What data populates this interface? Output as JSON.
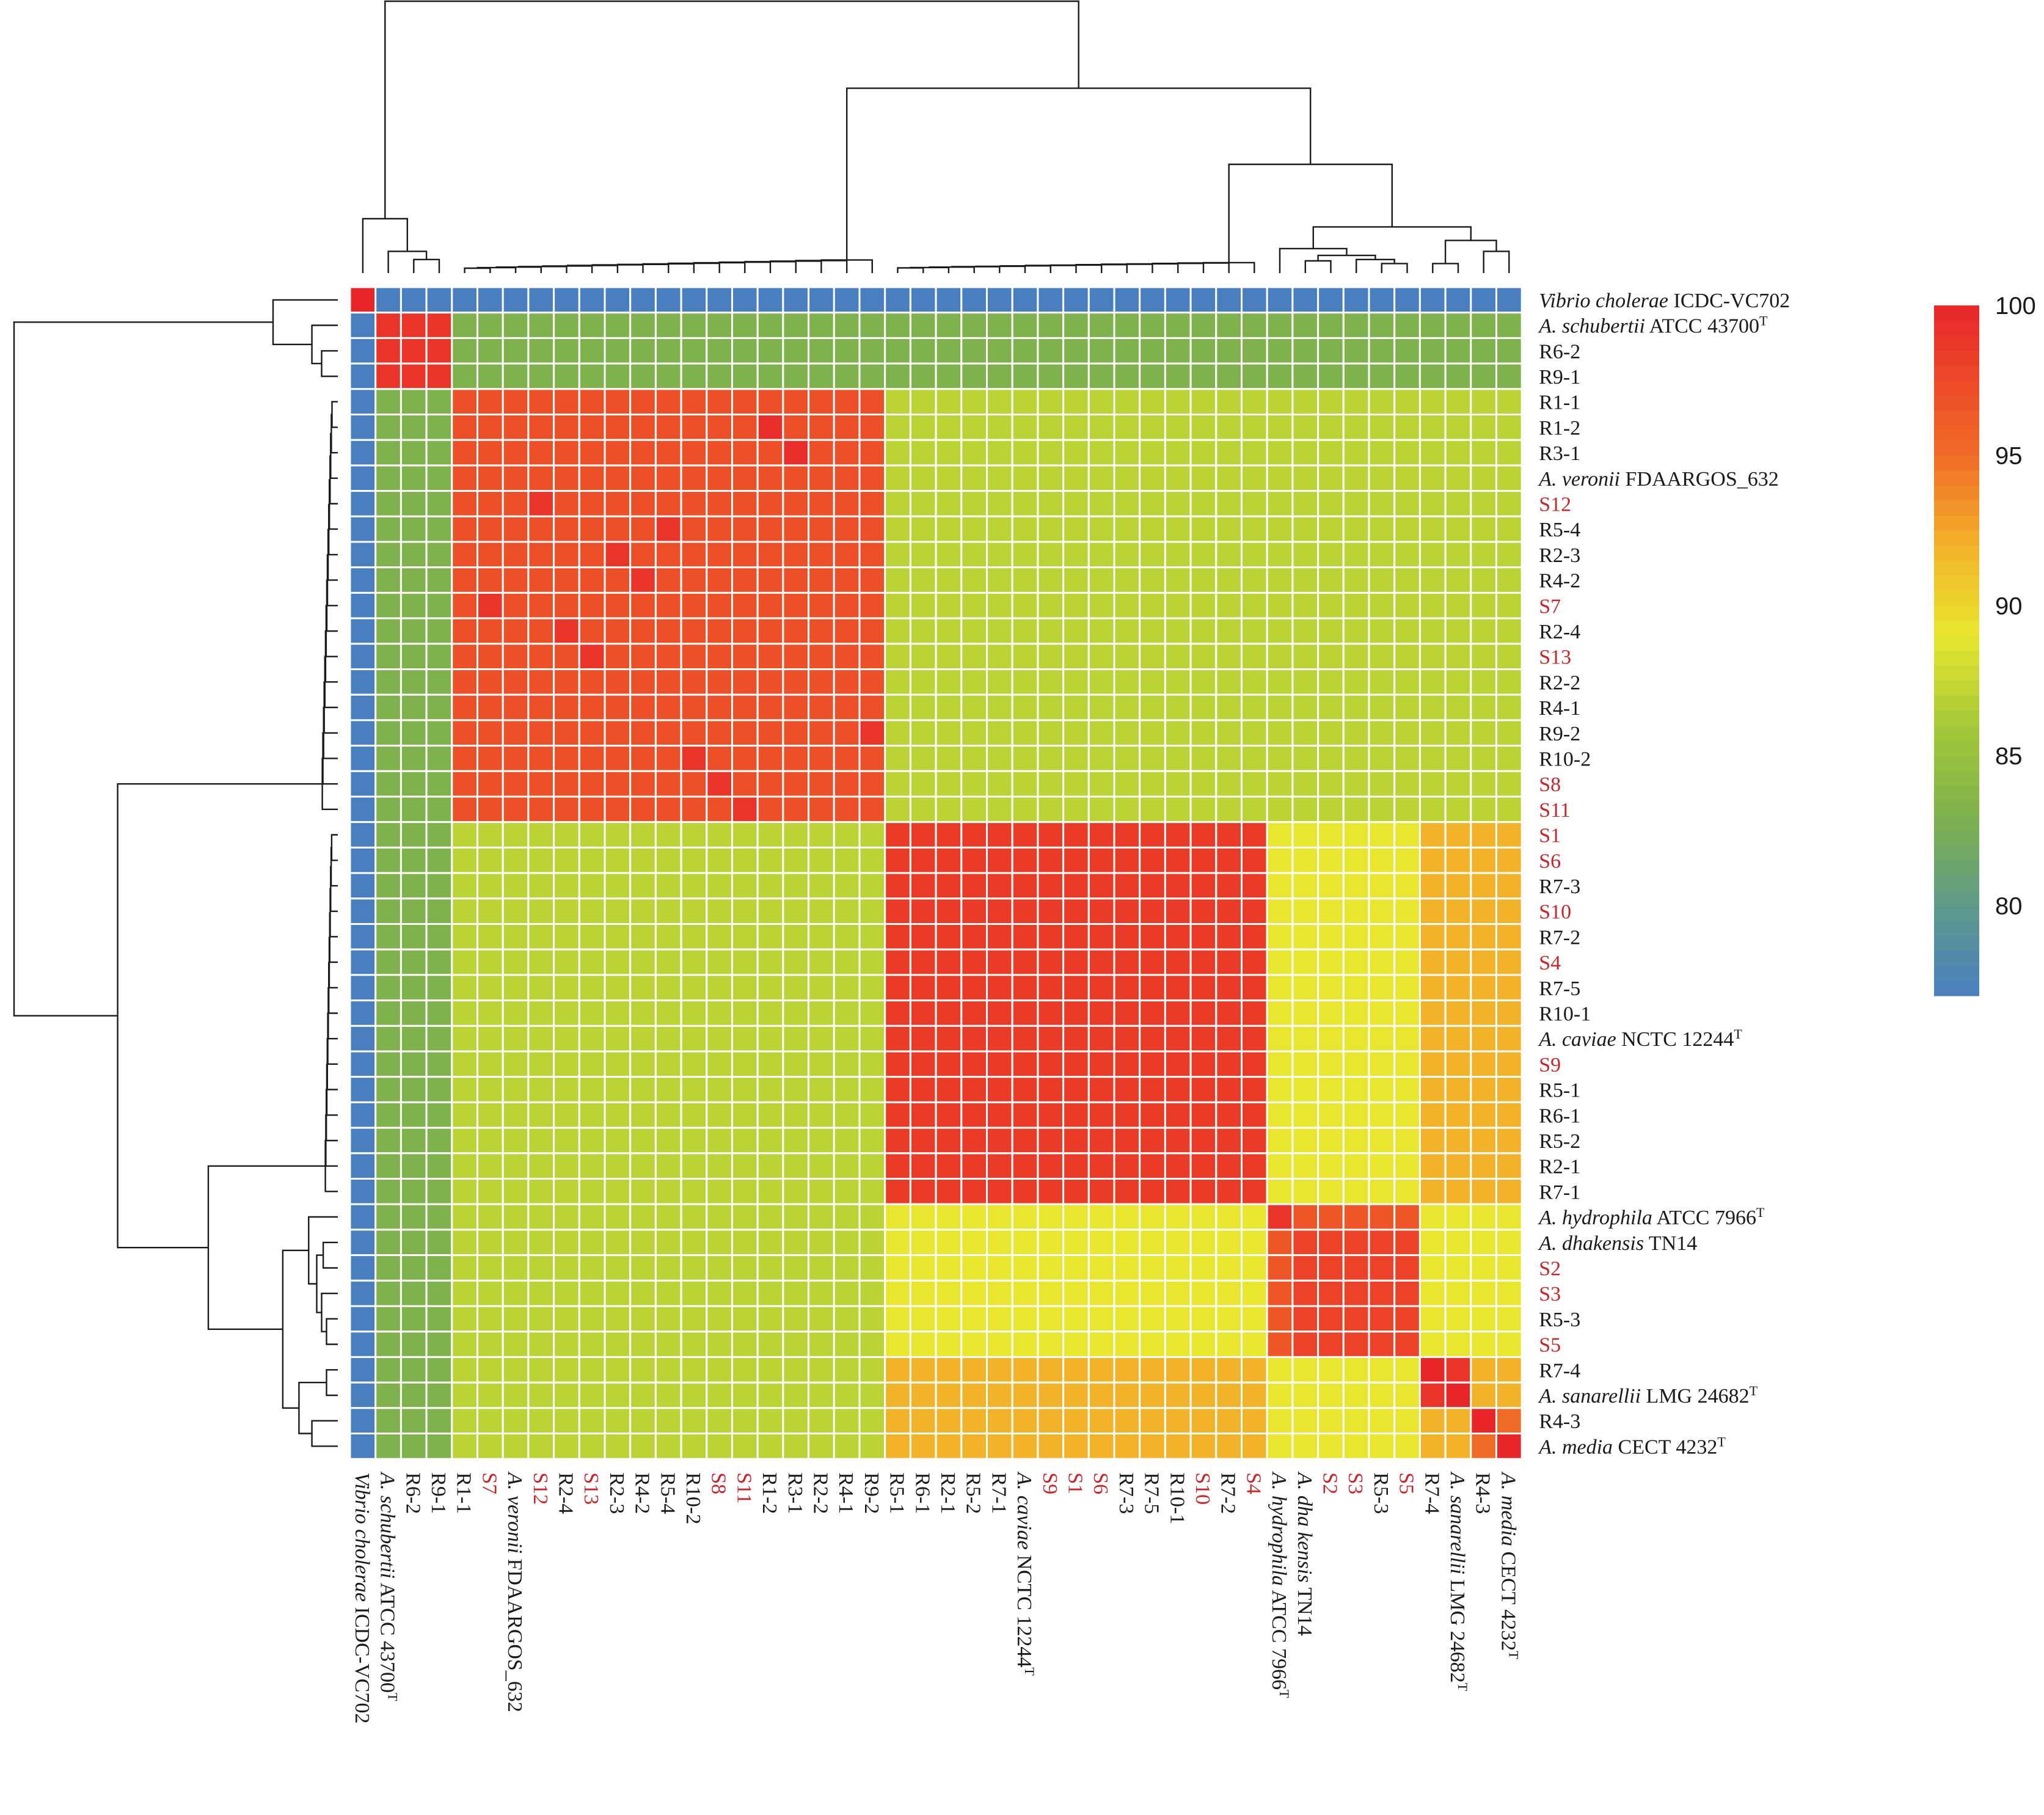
{
  "chart_data": {
    "type": "heatmap",
    "title": "",
    "xlabel": "",
    "ylabel": "",
    "row_labels": [
      {
        "parts": [
          {
            "t": "Vibrio cholerae",
            "i": true
          },
          {
            "t": " ICDC-VC702"
          }
        ],
        "red": false
      },
      {
        "parts": [
          {
            "t": "A. schubertii",
            "i": true
          },
          {
            "t": " ATCC 43700"
          },
          {
            "t": "T",
            "sup": true
          }
        ],
        "red": false
      },
      {
        "parts": [
          {
            "t": "R6-2"
          }
        ],
        "red": false
      },
      {
        "parts": [
          {
            "t": "R9-1"
          }
        ],
        "red": false
      },
      {
        "parts": [
          {
            "t": "R1-1"
          }
        ],
        "red": false
      },
      {
        "parts": [
          {
            "t": "R1-2"
          }
        ],
        "red": false
      },
      {
        "parts": [
          {
            "t": "R3-1"
          }
        ],
        "red": false
      },
      {
        "parts": [
          {
            "t": "A. veronii",
            "i": true
          },
          {
            "t": " FDAARGOS_632"
          }
        ],
        "red": false
      },
      {
        "parts": [
          {
            "t": "S12"
          }
        ],
        "red": true
      },
      {
        "parts": [
          {
            "t": "R5-4"
          }
        ],
        "red": false
      },
      {
        "parts": [
          {
            "t": "R2-3"
          }
        ],
        "red": false
      },
      {
        "parts": [
          {
            "t": "R4-2"
          }
        ],
        "red": false
      },
      {
        "parts": [
          {
            "t": "S7"
          }
        ],
        "red": true
      },
      {
        "parts": [
          {
            "t": "R2-4"
          }
        ],
        "red": false
      },
      {
        "parts": [
          {
            "t": "S13"
          }
        ],
        "red": true
      },
      {
        "parts": [
          {
            "t": "R2-2"
          }
        ],
        "red": false
      },
      {
        "parts": [
          {
            "t": "R4-1"
          }
        ],
        "red": false
      },
      {
        "parts": [
          {
            "t": "R9-2"
          }
        ],
        "red": false
      },
      {
        "parts": [
          {
            "t": "R10-2"
          }
        ],
        "red": false
      },
      {
        "parts": [
          {
            "t": "S8"
          }
        ],
        "red": true
      },
      {
        "parts": [
          {
            "t": "S11"
          }
        ],
        "red": true
      },
      {
        "parts": [
          {
            "t": "S1"
          }
        ],
        "red": true
      },
      {
        "parts": [
          {
            "t": "S6"
          }
        ],
        "red": true
      },
      {
        "parts": [
          {
            "t": "R7-3"
          }
        ],
        "red": false
      },
      {
        "parts": [
          {
            "t": "S10"
          }
        ],
        "red": true
      },
      {
        "parts": [
          {
            "t": "R7-2"
          }
        ],
        "red": false
      },
      {
        "parts": [
          {
            "t": "S4"
          }
        ],
        "red": true
      },
      {
        "parts": [
          {
            "t": "R7-5"
          }
        ],
        "red": false
      },
      {
        "parts": [
          {
            "t": "R10-1"
          }
        ],
        "red": false
      },
      {
        "parts": [
          {
            "t": "A. caviae",
            "i": true
          },
          {
            "t": " NCTC 12244"
          },
          {
            "t": "T",
            "sup": true
          }
        ],
        "red": false
      },
      {
        "parts": [
          {
            "t": "S9"
          }
        ],
        "red": true
      },
      {
        "parts": [
          {
            "t": "R5-1"
          }
        ],
        "red": false
      },
      {
        "parts": [
          {
            "t": "R6-1"
          }
        ],
        "red": false
      },
      {
        "parts": [
          {
            "t": "R5-2"
          }
        ],
        "red": false
      },
      {
        "parts": [
          {
            "t": "R2-1"
          }
        ],
        "red": false
      },
      {
        "parts": [
          {
            "t": "R7-1"
          }
        ],
        "red": false
      },
      {
        "parts": [
          {
            "t": "A. hydrophila",
            "i": true
          },
          {
            "t": " ATCC 7966"
          },
          {
            "t": "T",
            "sup": true
          }
        ],
        "red": false
      },
      {
        "parts": [
          {
            "t": "A. dhakensis",
            "i": true
          },
          {
            "t": " TN14"
          }
        ],
        "red": false
      },
      {
        "parts": [
          {
            "t": "S2"
          }
        ],
        "red": true
      },
      {
        "parts": [
          {
            "t": "S3"
          }
        ],
        "red": true
      },
      {
        "parts": [
          {
            "t": "R5-3"
          }
        ],
        "red": false
      },
      {
        "parts": [
          {
            "t": "S5"
          }
        ],
        "red": true
      },
      {
        "parts": [
          {
            "t": "R7-4"
          }
        ],
        "red": false
      },
      {
        "parts": [
          {
            "t": "A. sanarellii",
            "i": true
          },
          {
            "t": " LMG 24682"
          },
          {
            "t": "T",
            "sup": true
          }
        ],
        "red": false
      },
      {
        "parts": [
          {
            "t": "R4-3"
          }
        ],
        "red": false
      },
      {
        "parts": [
          {
            "t": "A. media",
            "i": true
          },
          {
            "t": " CECT 4232"
          },
          {
            "t": "T",
            "sup": true
          }
        ],
        "red": false
      }
    ],
    "col_labels": [
      {
        "parts": [
          {
            "t": "Vibrio cholerae",
            "i": true
          },
          {
            "t": " ICDC-VC702"
          }
        ],
        "red": false
      },
      {
        "parts": [
          {
            "t": "A. schubertii",
            "i": true
          },
          {
            "t": " ATCC 43700"
          },
          {
            "t": "T",
            "sup": true
          }
        ],
        "red": false
      },
      {
        "parts": [
          {
            "t": "R6-2"
          }
        ],
        "red": false
      },
      {
        "parts": [
          {
            "t": "R9-1"
          }
        ],
        "red": false
      },
      {
        "parts": [
          {
            "t": "R1-1"
          }
        ],
        "red": false
      },
      {
        "parts": [
          {
            "t": "S7"
          }
        ],
        "red": true
      },
      {
        "parts": [
          {
            "t": "A. veronii",
            "i": true
          },
          {
            "t": " FDAARGOS_632"
          }
        ],
        "red": false
      },
      {
        "parts": [
          {
            "t": "S12"
          }
        ],
        "red": true
      },
      {
        "parts": [
          {
            "t": "R2-4"
          }
        ],
        "red": false
      },
      {
        "parts": [
          {
            "t": "S13"
          }
        ],
        "red": true
      },
      {
        "parts": [
          {
            "t": "R2-3"
          }
        ],
        "red": false
      },
      {
        "parts": [
          {
            "t": "R4-2"
          }
        ],
        "red": false
      },
      {
        "parts": [
          {
            "t": "R5-4"
          }
        ],
        "red": false
      },
      {
        "parts": [
          {
            "t": "R10-2"
          }
        ],
        "red": false
      },
      {
        "parts": [
          {
            "t": "S8"
          }
        ],
        "red": true
      },
      {
        "parts": [
          {
            "t": "S11"
          }
        ],
        "red": true
      },
      {
        "parts": [
          {
            "t": "R1-2"
          }
        ],
        "red": false
      },
      {
        "parts": [
          {
            "t": "R3-1"
          }
        ],
        "red": false
      },
      {
        "parts": [
          {
            "t": "R2-2"
          }
        ],
        "red": false
      },
      {
        "parts": [
          {
            "t": "R4-1"
          }
        ],
        "red": false
      },
      {
        "parts": [
          {
            "t": "R9-2"
          }
        ],
        "red": false
      },
      {
        "parts": [
          {
            "t": "R5-1"
          }
        ],
        "red": false
      },
      {
        "parts": [
          {
            "t": "R6-1"
          }
        ],
        "red": false
      },
      {
        "parts": [
          {
            "t": "R2-1"
          }
        ],
        "red": false
      },
      {
        "parts": [
          {
            "t": "R5-2"
          }
        ],
        "red": false
      },
      {
        "parts": [
          {
            "t": "R7-1"
          }
        ],
        "red": false
      },
      {
        "parts": [
          {
            "t": "A. caviae",
            "i": true
          },
          {
            "t": " NCTC 12244"
          },
          {
            "t": "T",
            "sup": true
          }
        ],
        "red": false
      },
      {
        "parts": [
          {
            "t": "S9"
          }
        ],
        "red": true
      },
      {
        "parts": [
          {
            "t": "S1"
          }
        ],
        "red": true
      },
      {
        "parts": [
          {
            "t": "S6"
          }
        ],
        "red": true
      },
      {
        "parts": [
          {
            "t": "R7-3"
          }
        ],
        "red": false
      },
      {
        "parts": [
          {
            "t": "R7-5"
          }
        ],
        "red": false
      },
      {
        "parts": [
          {
            "t": "R10-1"
          }
        ],
        "red": false
      },
      {
        "parts": [
          {
            "t": "S10"
          }
        ],
        "red": true
      },
      {
        "parts": [
          {
            "t": "R7-2"
          }
        ],
        "red": false
      },
      {
        "parts": [
          {
            "t": "S4"
          }
        ],
        "red": true
      },
      {
        "parts": [
          {
            "t": "A. hydrophila",
            "i": true
          },
          {
            "t": " ATCC 7966"
          },
          {
            "t": "T",
            "sup": true
          }
        ],
        "red": false
      },
      {
        "parts": [
          {
            "t": "A. dha kensis",
            "i": true
          },
          {
            "t": " TN14"
          }
        ],
        "red": false
      },
      {
        "parts": [
          {
            "t": "S2"
          }
        ],
        "red": true
      },
      {
        "parts": [
          {
            "t": "S3"
          }
        ],
        "red": true
      },
      {
        "parts": [
          {
            "t": "R5-3"
          }
        ],
        "red": false
      },
      {
        "parts": [
          {
            "t": "S5"
          }
        ],
        "red": true
      },
      {
        "parts": [
          {
            "t": "R7-4"
          }
        ],
        "red": false
      },
      {
        "parts": [
          {
            "t": "A. sanarellii",
            "i": true
          },
          {
            "t": " LMG 24682"
          },
          {
            "t": "T",
            "sup": true
          }
        ],
        "red": false
      },
      {
        "parts": [
          {
            "t": "R4-3"
          }
        ],
        "red": false
      },
      {
        "parts": [
          {
            "t": "A. media",
            "i": true
          },
          {
            "t": " CECT 4232"
          },
          {
            "t": "T",
            "sup": true
          }
        ],
        "red": false
      }
    ],
    "row_groups": [
      1,
      2,
      2,
      2,
      3,
      3,
      3,
      3,
      3,
      3,
      3,
      3,
      3,
      3,
      3,
      3,
      3,
      3,
      3,
      3,
      3,
      4,
      4,
      4,
      4,
      4,
      4,
      4,
      4,
      4,
      4,
      4,
      4,
      4,
      4,
      4,
      5,
      5,
      5,
      5,
      5,
      5,
      6,
      6,
      7,
      8
    ],
    "col_groups": [
      1,
      2,
      2,
      2,
      3,
      3,
      3,
      3,
      3,
      3,
      3,
      3,
      3,
      3,
      3,
      3,
      3,
      3,
      3,
      3,
      3,
      4,
      4,
      4,
      4,
      4,
      4,
      4,
      4,
      4,
      4,
      4,
      4,
      4,
      4,
      4,
      5,
      5,
      5,
      5,
      5,
      5,
      6,
      6,
      7,
      8
    ],
    "group_identity": [
      [
        100,
        77,
        77,
        77,
        77,
        77,
        77,
        77
      ],
      [
        77,
        99,
        83,
        83,
        83,
        83,
        83,
        83
      ],
      [
        77,
        83,
        97,
        87,
        87,
        87,
        87,
        87
      ],
      [
        77,
        83,
        87,
        98.5,
        89,
        92,
        92,
        92
      ],
      [
        77,
        83,
        87,
        89,
        98,
        89,
        89,
        89
      ],
      [
        77,
        83,
        87,
        92,
        89,
        99,
        92,
        92
      ],
      [
        77,
        83,
        87,
        92,
        89,
        92,
        99,
        95
      ],
      [
        77,
        83,
        87,
        92,
        89,
        92,
        95,
        100
      ]
    ],
    "special_cells": [
      {
        "r": 0,
        "c": 0,
        "v": 100
      },
      {
        "r": 45,
        "c": 45,
        "v": 100
      },
      {
        "r": 44,
        "c": 44,
        "v": 100
      },
      {
        "r": 42,
        "c": 42,
        "v": 100
      },
      {
        "r": 43,
        "c": 43,
        "v": 100
      },
      {
        "r": 5,
        "c": 16,
        "v": 99.5
      },
      {
        "r": 6,
        "c": 17,
        "v": 99.5
      },
      {
        "r": 8,
        "c": 7,
        "v": 99
      },
      {
        "r": 12,
        "c": 5,
        "v": 99
      },
      {
        "r": 14,
        "c": 9,
        "v": 99
      },
      {
        "r": 13,
        "c": 8,
        "v": 99
      },
      {
        "r": 20,
        "c": 15,
        "v": 99
      },
      {
        "r": 19,
        "c": 14,
        "v": 99
      },
      {
        "r": 18,
        "c": 13,
        "v": 99
      },
      {
        "r": 17,
        "c": 20,
        "v": 99
      },
      {
        "r": 9,
        "c": 12,
        "v": 99
      },
      {
        "r": 10,
        "c": 10,
        "v": 99
      },
      {
        "r": 11,
        "c": 11,
        "v": 99
      }
    ],
    "cell_overrides": [
      {
        "r": 44,
        "c": 45,
        "v": 95
      },
      {
        "r": 45,
        "c": 44,
        "v": 95
      },
      {
        "r": 42,
        "c": 44,
        "v": 92
      },
      {
        "r": 43,
        "c": 45,
        "v": 92
      },
      {
        "r": 36,
        "c": 36,
        "v": 99
      },
      {
        "r": 36,
        "c": 37,
        "v": 96.5
      },
      {
        "r": 37,
        "c": 36,
        "v": 96.5
      },
      {
        "r": 38,
        "c": 36,
        "v": 96.5
      },
      {
        "r": 39,
        "c": 36,
        "v": 96.5
      },
      {
        "r": 40,
        "c": 36,
        "v": 96.5
      },
      {
        "r": 41,
        "c": 36,
        "v": 96.5
      },
      {
        "r": 36,
        "c": 38,
        "v": 96.5
      },
      {
        "r": 36,
        "c": 39,
        "v": 96.5
      },
      {
        "r": 36,
        "c": 40,
        "v": 96.5
      },
      {
        "r": 36,
        "c": 41,
        "v": 96.5
      }
    ],
    "colorbar": {
      "min": 77,
      "max": 100,
      "ticks": [
        100,
        95,
        90,
        85,
        80
      ],
      "stops": [
        {
          "v": 77,
          "color": "#4a7fbf"
        },
        {
          "v": 80,
          "color": "#5f9a8a"
        },
        {
          "v": 83,
          "color": "#7fb14c"
        },
        {
          "v": 86,
          "color": "#a5c939"
        },
        {
          "v": 89,
          "color": "#e8e62e"
        },
        {
          "v": 92,
          "color": "#f2b22a"
        },
        {
          "v": 95,
          "color": "#f06b27"
        },
        {
          "v": 100,
          "color": "#e8262a"
        }
      ]
    },
    "legend_position": "right",
    "grid": true
  }
}
